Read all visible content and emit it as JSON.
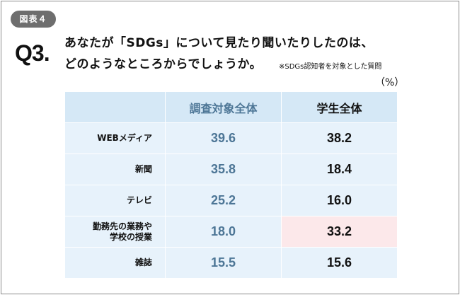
{
  "figure_badge": "図表４",
  "question": {
    "number": "Q3.",
    "line1": "あなたが「SDGs」について見たり聞いたりしたのは、",
    "line2": "どのようなところからでしょうか。",
    "note": "※SDGs認知者を対象とした質問"
  },
  "unit": "（%）",
  "table": {
    "columns": [
      "調査対象全体",
      "学生全体"
    ],
    "rows": [
      {
        "label": [
          "WEBメディア"
        ],
        "all": "39.6",
        "students": "38.2"
      },
      {
        "label": [
          "新聞"
        ],
        "all": "35.8",
        "students": "18.4"
      },
      {
        "label": [
          "テレビ"
        ],
        "all": "25.2",
        "students": "16.0"
      },
      {
        "label": [
          "勤務先の業務や",
          "学校の授業"
        ],
        "all": "18.0",
        "students": "33.2",
        "highlight": "students"
      },
      {
        "label": [
          "雑誌"
        ],
        "all": "15.5",
        "students": "15.6"
      }
    ]
  },
  "colors": {
    "header_bg": "#d5e8f6",
    "cell_bg": "#e7f2fb",
    "highlight_bg": "#fce8ea",
    "all_text": "#4d7696",
    "badge_bg": "#6e6e6e"
  }
}
